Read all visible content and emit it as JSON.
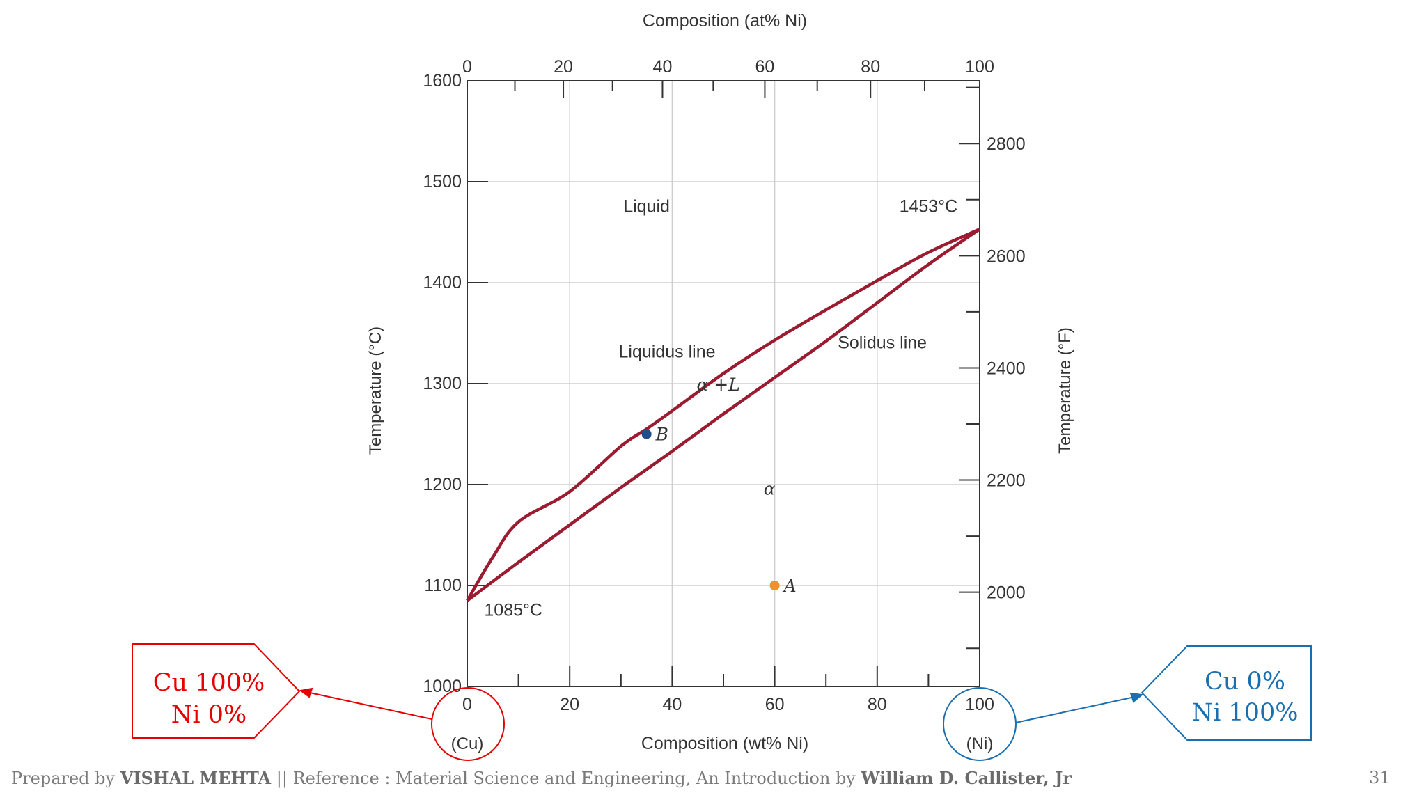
{
  "chart_data": {
    "type": "line",
    "title": "",
    "xlabel_top": "Composition (at% Ni)",
    "xlabel_bottom": "Composition (wt% Ni)",
    "ylabel_left": "Temperature (°C)",
    "ylabel_right": "Temperature (°F)",
    "xlim": [
      0,
      100
    ],
    "ylim": [
      1000,
      1600
    ],
    "x_ticks_top": [
      "0",
      "20",
      "40",
      "60",
      "80",
      "100"
    ],
    "x_ticks_bottom": [
      "0",
      "20",
      "40",
      "60",
      "80",
      "100"
    ],
    "y_ticks_left": [
      "1000",
      "1100",
      "1200",
      "1300",
      "1400",
      "1500",
      "1600"
    ],
    "y_ticks_right": [
      "2000",
      "2200",
      "2400",
      "2600",
      "2800"
    ],
    "y_ticks_right_values_F": [
      2000,
      2200,
      2400,
      2600,
      2800
    ],
    "x_end_labels": [
      "(Cu)",
      "(Ni)"
    ],
    "grid": true,
    "series": [
      {
        "name": "Liquidus line",
        "color": "#9b1b30",
        "points": [
          [
            0,
            1085
          ],
          [
            5,
            1128
          ],
          [
            10,
            1163
          ],
          [
            20,
            1193
          ],
          [
            30,
            1238
          ],
          [
            35,
            1255
          ],
          [
            40,
            1273
          ],
          [
            50,
            1310
          ],
          [
            60,
            1343
          ],
          [
            70,
            1373
          ],
          [
            80,
            1402
          ],
          [
            90,
            1430
          ],
          [
            100,
            1453
          ]
        ]
      },
      {
        "name": "Solidus line",
        "color": "#9b1b30",
        "points": [
          [
            0,
            1085
          ],
          [
            10,
            1123
          ],
          [
            20,
            1160
          ],
          [
            30,
            1197
          ],
          [
            40,
            1233
          ],
          [
            50,
            1270
          ],
          [
            60,
            1306
          ],
          [
            70,
            1342
          ],
          [
            80,
            1380
          ],
          [
            90,
            1418
          ],
          [
            100,
            1453
          ]
        ]
      }
    ],
    "points": [
      {
        "label": "A",
        "x": 60,
        "y": 1100,
        "color": "#f0912a"
      },
      {
        "label": "B",
        "x": 35,
        "y": 1250,
        "color": "#1f4e8c"
      }
    ],
    "region_labels": [
      {
        "text": "Liquid",
        "x": 35,
        "y": 1470
      },
      {
        "text": "1453°C",
        "x": 90,
        "y": 1470
      },
      {
        "text": "Liquidus line",
        "x": 39,
        "y": 1326
      },
      {
        "text": "Solidus line",
        "x": 81,
        "y": 1335
      },
      {
        "text": "α +L",
        "x": 49,
        "y": 1293
      },
      {
        "text": "α",
        "x": 59,
        "y": 1190
      },
      {
        "text": "1085°C",
        "x": 9,
        "y": 1070
      }
    ]
  },
  "callouts": {
    "left": {
      "line1": "Cu 100%",
      "line2": "Ni 0%",
      "color": "#e60000"
    },
    "right": {
      "line1": "Cu 0%",
      "line2": "Ni 100%",
      "color": "#1a6fb0"
    }
  },
  "footer": {
    "prefix": "Prepared by ",
    "author": "VISHAL MEHTA",
    "mid": " || Reference : Material Science and Engineering, An Introduction by ",
    "book_author": "William D. Callister, Jr",
    "page": "31"
  }
}
